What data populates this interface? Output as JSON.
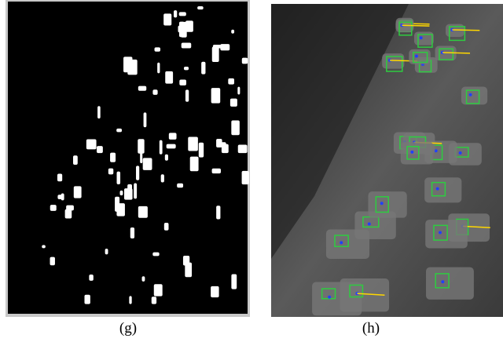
{
  "panels": [
    {
      "caption": "(g)"
    },
    {
      "caption": "(h)"
    }
  ]
}
